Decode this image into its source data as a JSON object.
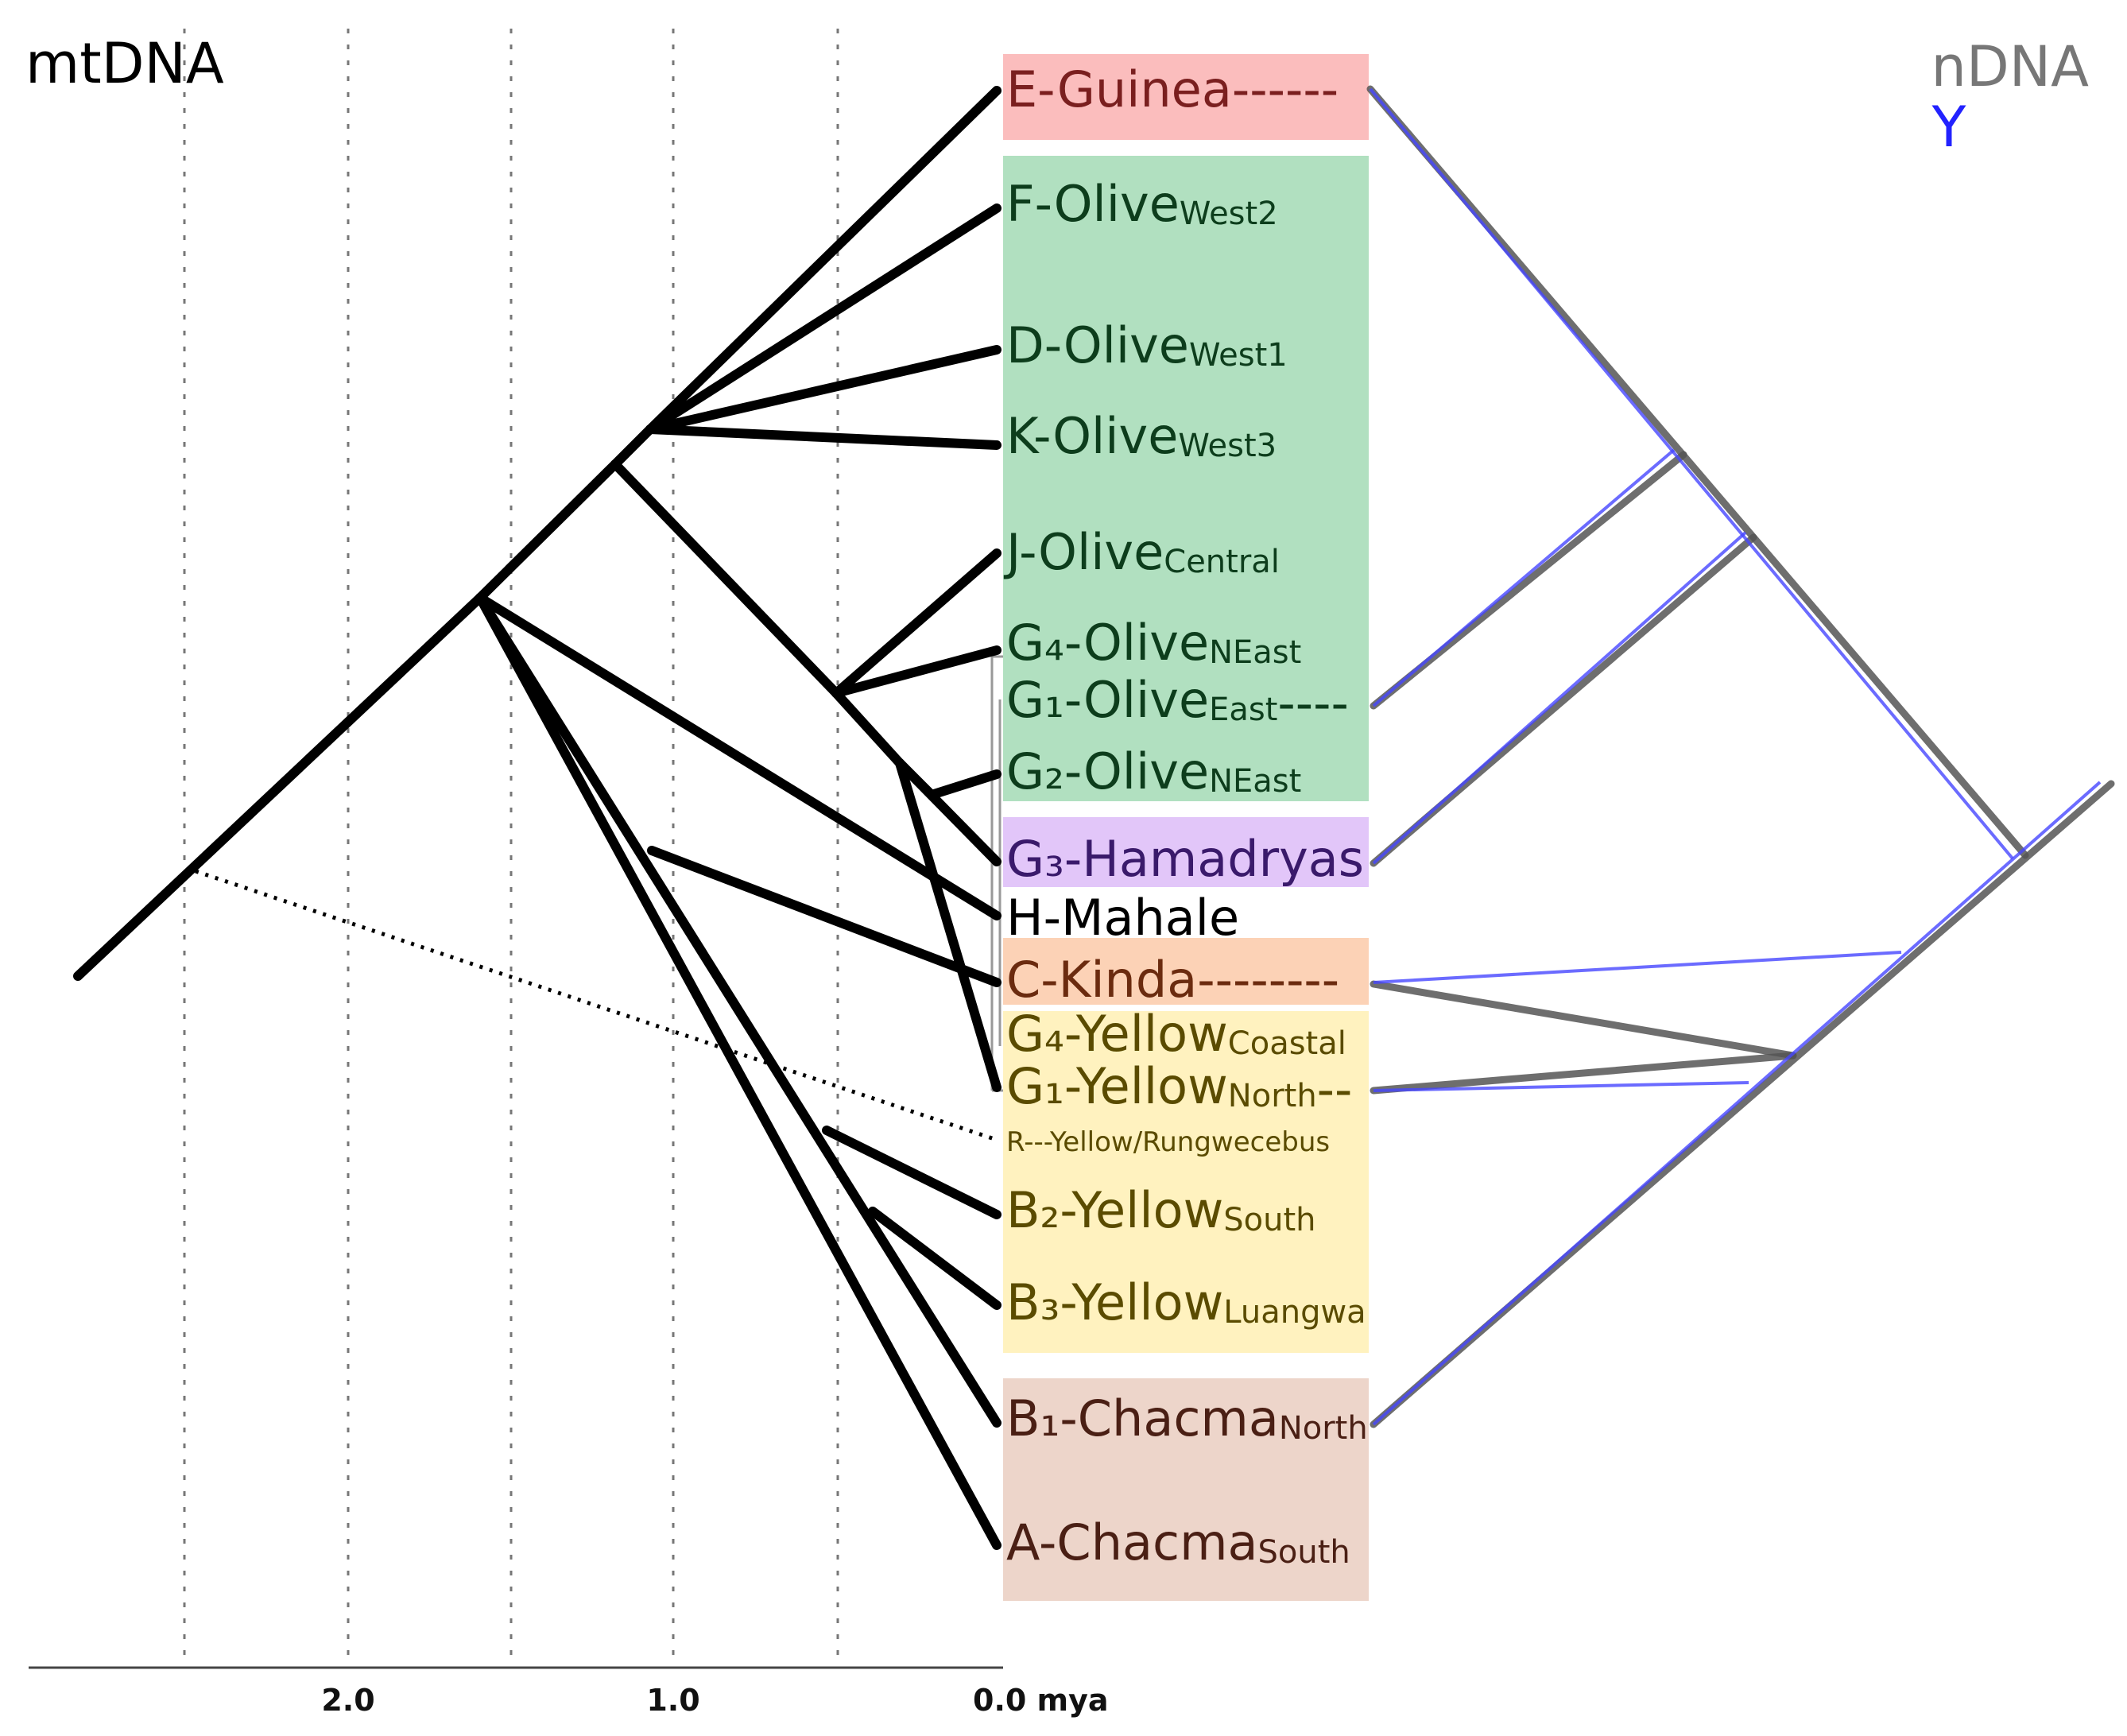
{
  "headers": {
    "left": "mtDNA",
    "right_top": "nDNA",
    "right_bottom": "Y"
  },
  "colors": {
    "guinea": "#fbbdbd",
    "olive": "#b1e0c0",
    "hamadryas": "#e2c6f9",
    "kinda": "#fcd2b6",
    "yellow": "#fff2bf",
    "chacma": "#edd5ca",
    "ndna_line": "#555555",
    "y_line": "#4646ff"
  },
  "axis": {
    "ticks": [
      "2.0",
      "1.0",
      "0.0 mya"
    ]
  },
  "taxa": [
    {
      "main": "E-Guinea",
      "sub": "",
      "tail": "------",
      "color": "#7a1f1f"
    },
    {
      "main": "F-Olive",
      "sub": "West2",
      "tail": "",
      "color": "#0d3d1c"
    },
    {
      "main": "D-Olive",
      "sub": "West1",
      "tail": "",
      "color": "#0d3d1c"
    },
    {
      "main": "K-Olive",
      "sub": "West3",
      "tail": "",
      "color": "#0d3d1c"
    },
    {
      "main": "J-Olive",
      "sub": "Central",
      "tail": "",
      "color": "#0d3d1c"
    },
    {
      "main": "G₄-Olive",
      "sub": "NEast",
      "tail": "",
      "color": "#0d3d1c"
    },
    {
      "main": "G₁-Olive",
      "sub": "East",
      "tail": "----",
      "color": "#0d3d1c"
    },
    {
      "main": "G₂-Olive",
      "sub": "NEast",
      "tail": "",
      "color": "#0d3d1c"
    },
    {
      "main": "G₃-Hamadryas",
      "sub": "",
      "tail": "",
      "color": "#3a1a6b"
    },
    {
      "main": "H-Mahale",
      "sub": "",
      "tail": "",
      "color": "#000000"
    },
    {
      "main": "C-Kinda",
      "sub": "",
      "tail": "--------",
      "color": "#6b2b0f"
    },
    {
      "main": "G₄-Yellow",
      "sub": "Coastal",
      "tail": "",
      "color": "#5a4b00"
    },
    {
      "main": "G₁-Yellow",
      "sub": "North",
      "tail": "--",
      "color": "#5a4b00"
    },
    {
      "main": "R---Yellow/Rungwecebus",
      "sub": "",
      "tail": "",
      "color": "#5a4b00"
    },
    {
      "main": "B₂-Yellow",
      "sub": "South",
      "tail": "",
      "color": "#5a4b00"
    },
    {
      "main": "B₃-Yellow",
      "sub": "Luangwa",
      "tail": "",
      "color": "#5a4b00"
    },
    {
      "main": "B₁-Chacma",
      "sub": "North",
      "tail": "",
      "color": "#4a1f14"
    },
    {
      "main": "A-Chacma",
      "sub": "South",
      "tail": "",
      "color": "#4a1f14"
    }
  ]
}
